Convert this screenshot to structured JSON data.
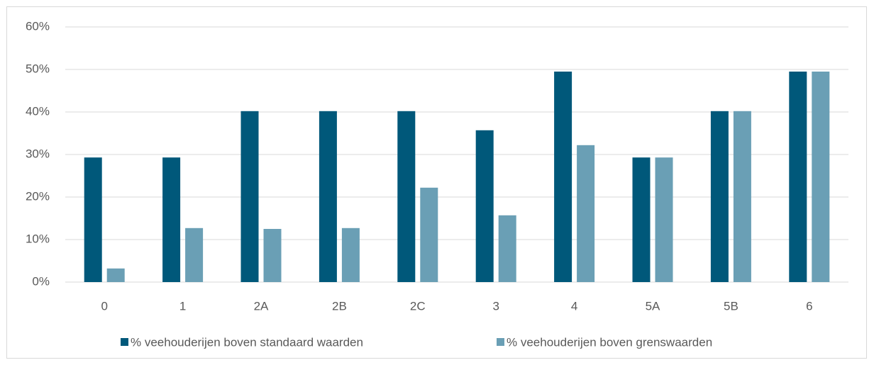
{
  "chart_data": {
    "type": "bar",
    "categories": [
      "0",
      "1",
      "2A",
      "2B",
      "2C",
      "3",
      "4",
      "5A",
      "5B",
      "6"
    ],
    "series": [
      {
        "name": "% veehouderijen boven standaard waarden",
        "color": "#00587a",
        "values": [
          29.3,
          29.3,
          40.2,
          40.2,
          40.2,
          35.7,
          49.5,
          29.3,
          40.2,
          49.5
        ]
      },
      {
        "name": "% veehouderijen boven grenswaarden",
        "color": "#6a9fb5",
        "values": [
          3.2,
          12.7,
          12.5,
          12.7,
          22.2,
          15.7,
          32.2,
          29.3,
          40.2,
          49.5
        ]
      }
    ],
    "ylim": [
      0,
      60
    ],
    "yticks": [
      {
        "value": 0,
        "label": "0%"
      },
      {
        "value": 10,
        "label": "10%"
      },
      {
        "value": 20,
        "label": "20%"
      },
      {
        "value": 30,
        "label": "30%"
      },
      {
        "value": 40,
        "label": "40%"
      },
      {
        "value": 50,
        "label": "50%"
      },
      {
        "value": 60,
        "label": "60%"
      }
    ],
    "grid": true,
    "legend": "bottom"
  }
}
